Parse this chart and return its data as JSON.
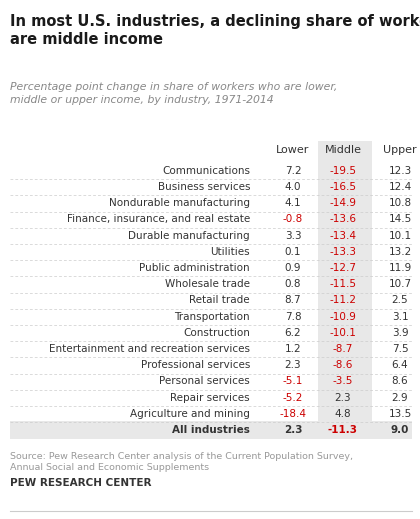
{
  "title": "In most U.S. industries, a declining share of workers\nare middle income",
  "subtitle": "Percentage point change in share of workers who are lower,\nmiddle or upper income, by industry, 1971-2014",
  "col_headers": [
    "Lower",
    "Middle",
    "Upper"
  ],
  "industries": [
    "Communications",
    "Business services",
    "Nondurable manufacturing",
    "Finance, insurance, and real estate",
    "Durable manufacturing",
    "Utilities",
    "Public administration",
    "Wholesale trade",
    "Retail trade",
    "Transportation",
    "Construction",
    "Entertainment and recreation services",
    "Professional services",
    "Personal services",
    "Repair services",
    "Agriculture and mining",
    "All industries"
  ],
  "lower": [
    7.2,
    4.0,
    4.1,
    -0.8,
    3.3,
    0.1,
    0.9,
    0.8,
    8.7,
    7.8,
    6.2,
    1.2,
    2.3,
    -5.1,
    -5.2,
    -18.4,
    2.3
  ],
  "middle": [
    -19.5,
    -16.5,
    -14.9,
    -13.6,
    -13.4,
    -13.3,
    -12.7,
    -11.5,
    -11.2,
    -10.9,
    -10.1,
    -8.7,
    -8.6,
    -3.5,
    2.3,
    4.8,
    -11.3
  ],
  "upper": [
    12.3,
    12.4,
    10.8,
    14.5,
    10.1,
    13.2,
    11.9,
    10.7,
    2.5,
    3.1,
    3.9,
    7.5,
    6.4,
    8.6,
    2.9,
    13.5,
    9.0
  ],
  "source_line1": "Source: Pew Research Center analysis of the Current Population Survey,",
  "source_line2": "Annual Social and Economic Supplements",
  "brand": "PEW RESEARCH CENTER",
  "negative_color": "#cc0000",
  "positive_color": "#333333",
  "middle_col_bg": "#e8e8e8",
  "last_row_bg": "#e8e8e8",
  "separator_color": "#cccccc",
  "title_color": "#1a1a1a",
  "subtitle_color": "#888888",
  "source_color": "#999999",
  "brand_color": "#333333"
}
